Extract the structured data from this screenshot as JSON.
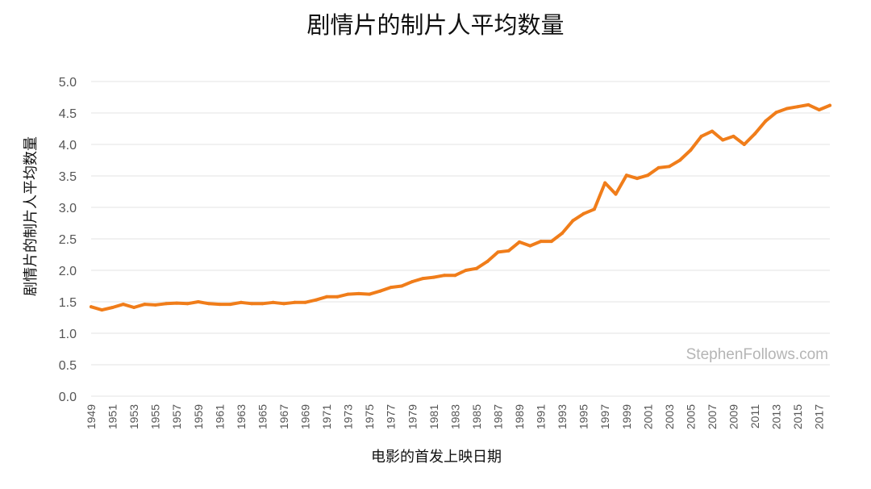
{
  "chart_data": {
    "type": "line",
    "title": "剧情片的制片人平均数量",
    "xlabel": "电影的首发上映日期",
    "ylabel": "剧情片的制片人平均数量",
    "watermark": "StephenFollows.com",
    "ylim": [
      0,
      5
    ],
    "yticks": [
      "0.0",
      "0.5",
      "1.0",
      "1.5",
      "2.0",
      "2.5",
      "3.0",
      "3.5",
      "4.0",
      "4.5",
      "5.0"
    ],
    "xticks": [
      "1949",
      "1951",
      "1953",
      "1955",
      "1957",
      "1959",
      "1961",
      "1963",
      "1965",
      "1967",
      "1969",
      "1971",
      "1973",
      "1975",
      "1977",
      "1979",
      "1981",
      "1983",
      "1985",
      "1987",
      "1989",
      "1991",
      "1993",
      "1995",
      "1997",
      "1999",
      "2001",
      "2003",
      "2005",
      "2007",
      "2009",
      "2011",
      "2013",
      "2015",
      "2017"
    ],
    "grid": true,
    "colors": {
      "line": "#f07d1a",
      "grid": "#e3e3e3"
    },
    "series": [
      {
        "x": [
          1949,
          1950,
          1951,
          1952,
          1953,
          1954,
          1955,
          1956,
          1957,
          1958,
          1959,
          1960,
          1961,
          1962,
          1963,
          1964,
          1965,
          1966,
          1967,
          1968,
          1969,
          1970,
          1971,
          1972,
          1973,
          1974,
          1975,
          1976,
          1977,
          1978,
          1979,
          1980,
          1981,
          1982,
          1983,
          1984,
          1985,
          1986,
          1987,
          1988,
          1989,
          1990,
          1991,
          1992,
          1993,
          1994,
          1995,
          1996,
          1997,
          1998,
          1999,
          2000,
          2001,
          2002,
          2003,
          2004,
          2005,
          2006,
          2007,
          2008,
          2009,
          2010,
          2011,
          2012,
          2013,
          2014,
          2015,
          2016,
          2017,
          2018
        ],
        "values": [
          1.42,
          1.37,
          1.41,
          1.46,
          1.41,
          1.46,
          1.45,
          1.47,
          1.48,
          1.47,
          1.5,
          1.47,
          1.46,
          1.46,
          1.49,
          1.47,
          1.47,
          1.49,
          1.47,
          1.49,
          1.49,
          1.53,
          1.58,
          1.58,
          1.62,
          1.63,
          1.62,
          1.67,
          1.73,
          1.75,
          1.82,
          1.87,
          1.89,
          1.92,
          1.92,
          2.0,
          2.03,
          2.14,
          2.29,
          2.31,
          2.45,
          2.39,
          2.46,
          2.46,
          2.59,
          2.79,
          2.9,
          2.97,
          3.39,
          3.21,
          3.51,
          3.46,
          3.51,
          3.63,
          3.65,
          3.75,
          3.91,
          4.13,
          4.21,
          4.07,
          4.13,
          4.0,
          4.17,
          4.37,
          4.51,
          4.57,
          4.6,
          4.63,
          4.55,
          4.62
        ]
      }
    ]
  }
}
